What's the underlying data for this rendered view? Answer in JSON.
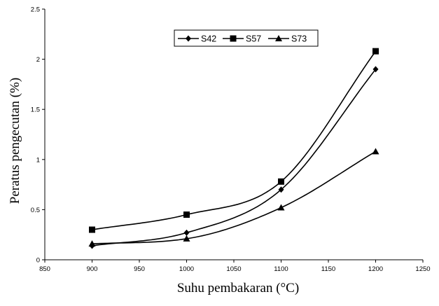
{
  "chart_data": {
    "type": "line",
    "title": "",
    "xlabel": "Suhu pembakaran (°C)",
    "ylabel": "Peratus pengecutan (%)",
    "xlim": [
      850,
      1250
    ],
    "ylim": [
      0,
      2.5
    ],
    "x_ticks": [
      850,
      900,
      950,
      1000,
      1050,
      1100,
      1150,
      1200,
      1250
    ],
    "y_ticks": [
      0,
      0.5,
      1,
      1.5,
      2,
      2.5
    ],
    "x_tick_labels": [
      "850",
      "900",
      "950",
      "1000",
      "1050",
      "1100",
      "1150",
      "1200",
      "1250"
    ],
    "y_tick_labels": [
      "0",
      "0.5",
      "1",
      "1.5",
      "2",
      "2.5"
    ],
    "grid": false,
    "legend_position": "top-center",
    "series": [
      {
        "name": "S42",
        "marker": "diamond",
        "color": "#000000",
        "x": [
          900,
          1000,
          1100,
          1200
        ],
        "y": [
          0.14,
          0.27,
          0.7,
          1.9
        ]
      },
      {
        "name": "S57",
        "marker": "square",
        "color": "#000000",
        "x": [
          900,
          1000,
          1100,
          1200
        ],
        "y": [
          0.3,
          0.45,
          0.78,
          2.08
        ]
      },
      {
        "name": "S73",
        "marker": "triangle",
        "color": "#000000",
        "x": [
          900,
          1000,
          1100,
          1200
        ],
        "y": [
          0.16,
          0.21,
          0.52,
          1.08
        ]
      }
    ]
  }
}
